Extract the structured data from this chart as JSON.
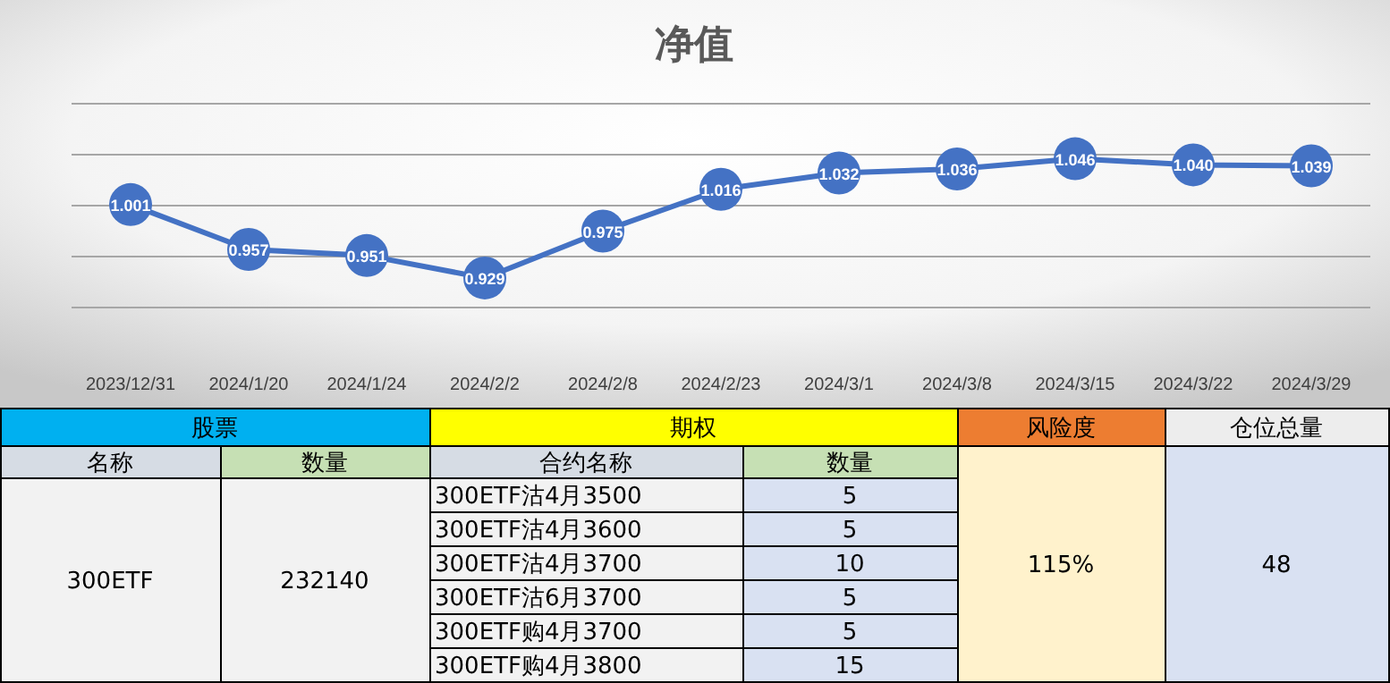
{
  "chart_data": [
    {
      "type": "line",
      "title": "净值",
      "categories": [
        "2023/12/31",
        "2024/1/20",
        "2024/1/24",
        "2024/2/2",
        "2024/2/8",
        "2024/2/23",
        "2024/3/1",
        "2024/3/8",
        "2024/3/15",
        "2024/3/22",
        "2024/3/29"
      ],
      "series": [
        {
          "color": "#4472c4",
          "values": [
            1.001,
            0.957,
            0.951,
            0.929,
            0.975,
            1.016,
            1.032,
            1.036,
            1.046,
            1.04,
            1.039
          ],
          "value_labels": [
            "1.001",
            "0.957",
            "0.951",
            "0.929",
            "0.975",
            "1.016",
            "1.032",
            "1.036",
            "1.046",
            "1.040",
            "1.039"
          ]
        }
      ],
      "ylim": [
        0.9,
        1.1
      ],
      "yticks": [
        {
          "value": 0.9,
          "label": null
        },
        {
          "value": 0.95,
          "label": null
        },
        {
          "value": 1.0,
          "label": null
        },
        {
          "value": 1.05,
          "label": null
        },
        {
          "value": 1.1,
          "label": null
        }
      ],
      "grid": "y",
      "tick_labels": "x",
      "marker": "circle"
    },
    {
      "type": "other",
      "annotations": [
        "股票",
        "期权",
        "风险度",
        "仓位总量",
        "名称",
        "数量",
        "合约名称",
        "数量",
        "300ETF",
        "232140",
        "300ETF沽4月3500",
        "5",
        "300ETF沽4月3600",
        "5",
        "300ETF沽4月3700",
        "10",
        "300ETF沽6月3700",
        "5",
        "300ETF购4月3700",
        "5",
        "300ETF购4月3800",
        "15",
        "115%",
        "48"
      ]
    }
  ]
}
